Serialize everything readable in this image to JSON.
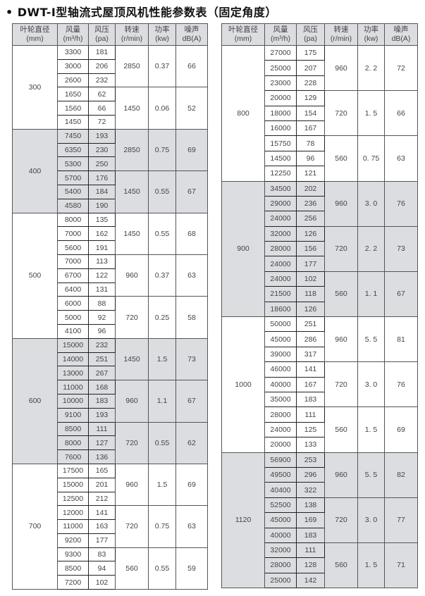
{
  "title": "DWT-Ⅰ型轴流式屋顶风机性能参数表（固定角度）",
  "bullet": "•",
  "headers": [
    {
      "name": "叶轮直径",
      "unit": "(mm)"
    },
    {
      "name": "风量",
      "unit": "(m³/h)"
    },
    {
      "name": "风压",
      "unit": "(pa)"
    },
    {
      "name": "转速",
      "unit": "(r/min)"
    },
    {
      "name": "功率",
      "unit": "(kw)"
    },
    {
      "name": "噪声",
      "unit": "dB(A)"
    }
  ],
  "colors": {
    "shade": "#dcdde1",
    "border": "#555555"
  },
  "tables": [
    {
      "groups": [
        {
          "diameter": "300",
          "shaded": false,
          "subs": [
            {
              "speed": "2850",
              "power": "0.37",
              "noise": "66",
              "rows": [
                [
                  "3300",
                  "181"
                ],
                [
                  "3000",
                  "206"
                ],
                [
                  "2600",
                  "232"
                ]
              ]
            },
            {
              "speed": "1450",
              "power": "0.06",
              "noise": "52",
              "rows": [
                [
                  "1650",
                  "62"
                ],
                [
                  "1560",
                  "66"
                ],
                [
                  "1450",
                  "72"
                ]
              ]
            }
          ]
        },
        {
          "diameter": "400",
          "shaded": true,
          "subs": [
            {
              "speed": "2850",
              "power": "0.75",
              "noise": "69",
              "rows": [
                [
                  "7450",
                  "193"
                ],
                [
                  "6350",
                  "230"
                ],
                [
                  "5300",
                  "250"
                ]
              ]
            },
            {
              "speed": "1450",
              "power": "0.55",
              "noise": "67",
              "rows": [
                [
                  "5700",
                  "176"
                ],
                [
                  "5400",
                  "184"
                ],
                [
                  "4580",
                  "190"
                ]
              ]
            }
          ]
        },
        {
          "diameter": "500",
          "shaded": false,
          "subs": [
            {
              "speed": "1450",
              "power": "0.55",
              "noise": "68",
              "rows": [
                [
                  "8000",
                  "135"
                ],
                [
                  "7000",
                  "162"
                ],
                [
                  "5600",
                  "191"
                ]
              ]
            },
            {
              "speed": "960",
              "power": "0.37",
              "noise": "63",
              "rows": [
                [
                  "7000",
                  "113"
                ],
                [
                  "6700",
                  "122"
                ],
                [
                  "6400",
                  "131"
                ]
              ]
            },
            {
              "speed": "720",
              "power": "0.25",
              "noise": "58",
              "rows": [
                [
                  "6000",
                  "88"
                ],
                [
                  "5000",
                  "92"
                ],
                [
                  "4100",
                  "96"
                ]
              ]
            }
          ]
        },
        {
          "diameter": "600",
          "shaded": true,
          "subs": [
            {
              "speed": "1450",
              "power": "1.5",
              "noise": "73",
              "rows": [
                [
                  "15000",
                  "232"
                ],
                [
                  "14000",
                  "251"
                ],
                [
                  "13000",
                  "267"
                ]
              ]
            },
            {
              "speed": "960",
              "power": "1.1",
              "noise": "67",
              "rows": [
                [
                  "11000",
                  "168"
                ],
                [
                  "10000",
                  "183"
                ],
                [
                  "9100",
                  "193"
                ]
              ]
            },
            {
              "speed": "720",
              "power": "0.55",
              "noise": "62",
              "rows": [
                [
                  "8500",
                  "111"
                ],
                [
                  "8000",
                  "127"
                ],
                [
                  "7600",
                  "136"
                ]
              ]
            }
          ]
        },
        {
          "diameter": "700",
          "shaded": false,
          "subs": [
            {
              "speed": "960",
              "power": "1.5",
              "noise": "69",
              "rows": [
                [
                  "17500",
                  "165"
                ],
                [
                  "15000",
                  "201"
                ],
                [
                  "12500",
                  "212"
                ]
              ]
            },
            {
              "speed": "720",
              "power": "0.75",
              "noise": "63",
              "rows": [
                [
                  "12000",
                  "141"
                ],
                [
                  "11000",
                  "163"
                ],
                [
                  "9200",
                  "177"
                ]
              ]
            },
            {
              "speed": "560",
              "power": "0.55",
              "noise": "59",
              "rows": [
                [
                  "9300",
                  "83"
                ],
                [
                  "8500",
                  "94"
                ],
                [
                  "7200",
                  "102"
                ]
              ]
            }
          ]
        }
      ]
    },
    {
      "groups": [
        {
          "diameter": "800",
          "shaded": false,
          "subs": [
            {
              "speed": "960",
              "power": "2. 2",
              "noise": "72",
              "rows": [
                [
                  "27000",
                  "175"
                ],
                [
                  "25000",
                  "207"
                ],
                [
                  "23000",
                  "228"
                ]
              ]
            },
            {
              "speed": "720",
              "power": "1. 5",
              "noise": "66",
              "rows": [
                [
                  "20000",
                  "129"
                ],
                [
                  "18000",
                  "154"
                ],
                [
                  "16000",
                  "167"
                ]
              ]
            },
            {
              "speed": "560",
              "power": "0. 75",
              "noise": "63",
              "rows": [
                [
                  "15750",
                  "78"
                ],
                [
                  "14500",
                  "96"
                ],
                [
                  "12250",
                  "121"
                ]
              ]
            }
          ]
        },
        {
          "diameter": "900",
          "shaded": true,
          "subs": [
            {
              "speed": "960",
              "power": "3. 0",
              "noise": "76",
              "rows": [
                [
                  "34500",
                  "202"
                ],
                [
                  "29000",
                  "236"
                ],
                [
                  "24000",
                  "256"
                ]
              ]
            },
            {
              "speed": "720",
              "power": "2. 2",
              "noise": "73",
              "rows": [
                [
                  "32000",
                  "126"
                ],
                [
                  "28000",
                  "156"
                ],
                [
                  "24000",
                  "177"
                ]
              ]
            },
            {
              "speed": "560",
              "power": "1. 1",
              "noise": "67",
              "rows": [
                [
                  "24000",
                  "102"
                ],
                [
                  "21500",
                  "118"
                ],
                [
                  "18600",
                  "126"
                ]
              ]
            }
          ]
        },
        {
          "diameter": "1000",
          "shaded": false,
          "subs": [
            {
              "speed": "960",
              "power": "5. 5",
              "noise": "81",
              "rows": [
                [
                  "50000",
                  "251"
                ],
                [
                  "45000",
                  "286"
                ],
                [
                  "39000",
                  "317"
                ]
              ]
            },
            {
              "speed": "720",
              "power": "3. 0",
              "noise": "76",
              "rows": [
                [
                  "46000",
                  "141"
                ],
                [
                  "40000",
                  "167"
                ],
                [
                  "35000",
                  "183"
                ]
              ]
            },
            {
              "speed": "560",
              "power": "1. 5",
              "noise": "69",
              "rows": [
                [
                  "28000",
                  "111"
                ],
                [
                  "24000",
                  "125"
                ],
                [
                  "20000",
                  "133"
                ]
              ]
            }
          ]
        },
        {
          "diameter": "1120",
          "shaded": true,
          "subs": [
            {
              "speed": "960",
              "power": "5. 5",
              "noise": "82",
              "rows": [
                [
                  "56900",
                  "253"
                ],
                [
                  "49500",
                  "296"
                ],
                [
                  "40400",
                  "322"
                ]
              ]
            },
            {
              "speed": "720",
              "power": "3. 0",
              "noise": "77",
              "rows": [
                [
                  "52500",
                  "138"
                ],
                [
                  "45000",
                  "169"
                ],
                [
                  "40000",
                  "183"
                ]
              ]
            },
            {
              "speed": "560",
              "power": "1. 5",
              "noise": "71",
              "rows": [
                [
                  "32000",
                  "111"
                ],
                [
                  "28000",
                  "128"
                ],
                [
                  "25000",
                  "142"
                ]
              ]
            }
          ]
        }
      ]
    }
  ]
}
